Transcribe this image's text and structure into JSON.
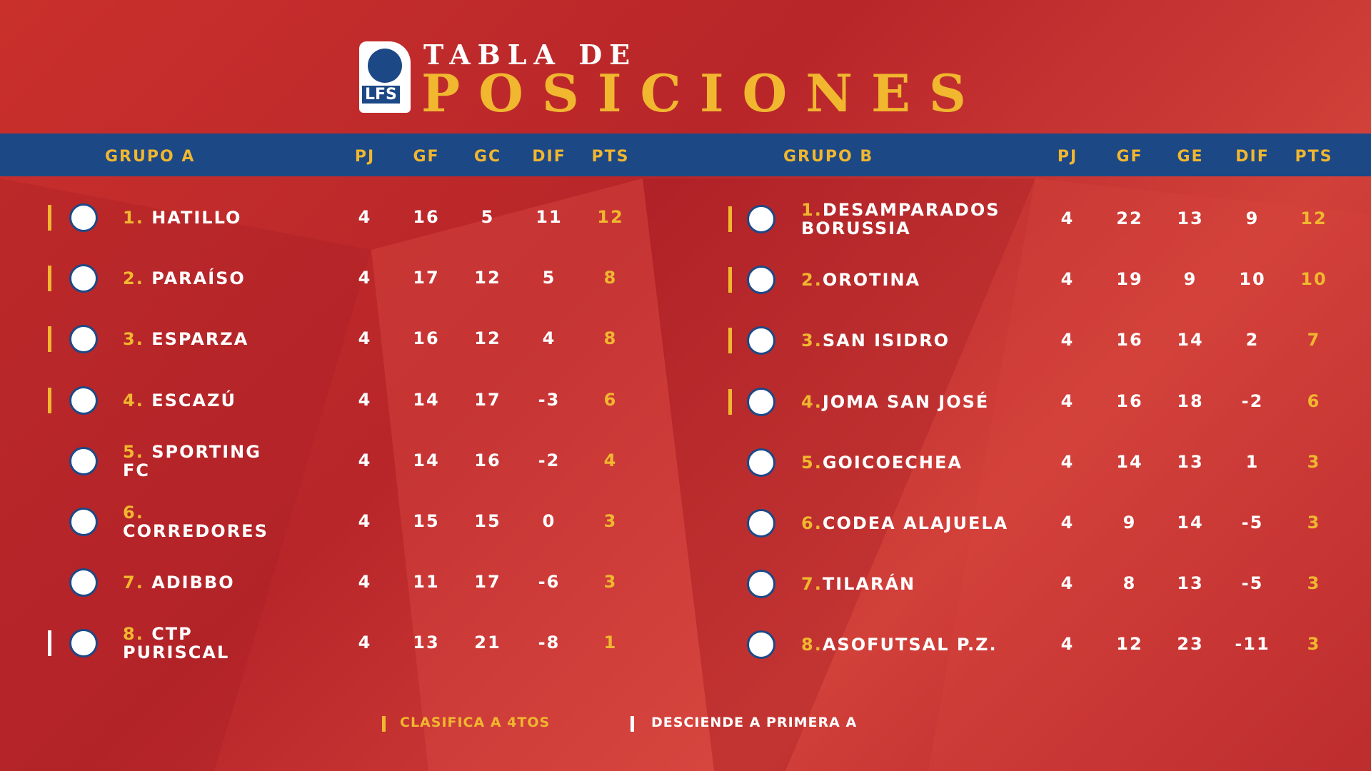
{
  "header": {
    "logo": "LFS",
    "title_top": "TABLA DE",
    "title_main": "POSICIONES"
  },
  "groups": [
    {
      "title": "GRUPO A",
      "columns": [
        "PJ",
        "GF",
        "GC",
        "DIF",
        "PTS"
      ],
      "rows": [
        {
          "rank": "1.",
          "name": "HATILLO",
          "stats": [
            4,
            16,
            5,
            11,
            12
          ],
          "marker_color": "#f0b72f"
        },
        {
          "rank": "2.",
          "name": "PARAÍSO",
          "stats": [
            4,
            17,
            12,
            5,
            8
          ],
          "marker_color": "#f0b72f"
        },
        {
          "rank": "3.",
          "name": "ESPARZA",
          "stats": [
            4,
            16,
            12,
            4,
            8
          ],
          "marker_color": "#f0b72f"
        },
        {
          "rank": "4.",
          "name": "ESCAZÚ",
          "stats": [
            4,
            14,
            17,
            -3,
            6
          ],
          "marker_color": "#f0b72f"
        },
        {
          "rank": "5.",
          "name": "SPORTING FC",
          "stats": [
            4,
            14,
            16,
            -2,
            4
          ],
          "marker_color": null
        },
        {
          "rank": "6.",
          "name": "CORREDORES",
          "stats": [
            4,
            15,
            15,
            0,
            3
          ],
          "marker_color": null
        },
        {
          "rank": "7.",
          "name": "ADIBBO",
          "stats": [
            4,
            11,
            17,
            -6,
            3
          ],
          "marker_color": null
        },
        {
          "rank": "8.",
          "name": "CTP PURISCAL",
          "stats": [
            4,
            13,
            21,
            -8,
            1
          ],
          "marker_color": "#ffffff"
        }
      ]
    },
    {
      "title": "GRUPO B",
      "columns": [
        "PJ",
        "GF",
        "GE",
        "DIF",
        "PTS"
      ],
      "rows": [
        {
          "rank": "1.",
          "name": "DESAMPARADOS BORUSSIA",
          "stats": [
            4,
            22,
            13,
            9,
            12
          ],
          "marker_color": "#f0b72f"
        },
        {
          "rank": "2.",
          "name": "OROTINA",
          "stats": [
            4,
            19,
            9,
            10,
            10
          ],
          "marker_color": "#f0b72f"
        },
        {
          "rank": "3.",
          "name": "SAN ISIDRO",
          "stats": [
            4,
            16,
            14,
            2,
            7
          ],
          "marker_color": "#f0b72f"
        },
        {
          "rank": "4.",
          "name": "JOMA SAN JOSÉ",
          "stats": [
            4,
            16,
            18,
            -2,
            6
          ],
          "marker_color": "#f0b72f"
        },
        {
          "rank": "5.",
          "name": "GOICOECHEA",
          "stats": [
            4,
            14,
            13,
            1,
            3
          ],
          "marker_color": null
        },
        {
          "rank": "6.",
          "name": "CODEA ALAJUELA",
          "stats": [
            4,
            9,
            14,
            -5,
            3
          ],
          "marker_color": null
        },
        {
          "rank": "7.",
          "name": "TILARÁN",
          "stats": [
            4,
            8,
            13,
            -5,
            3
          ],
          "marker_color": null
        },
        {
          "rank": "8.",
          "name": "ASOFUTSAL P.Z.",
          "stats": [
            4,
            12,
            23,
            -11,
            3
          ],
          "marker_color": null
        }
      ]
    }
  ],
  "legend": [
    {
      "label": "CLASIFICA A 4TOS",
      "color": "#f0b72f"
    },
    {
      "label": "DESCIENDE A PRIMERA A",
      "color": "#ffffff"
    }
  ]
}
